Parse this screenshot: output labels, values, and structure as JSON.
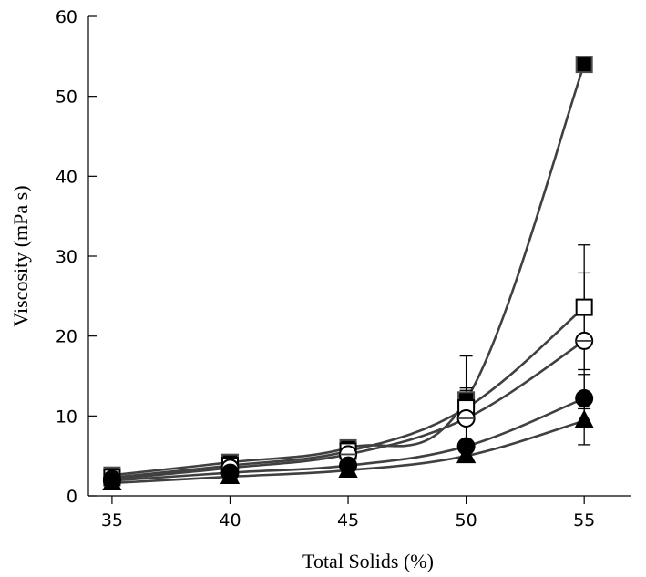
{
  "chart_data": {
    "type": "line",
    "xlabel": "Total Solids (%)",
    "ylabel": "Viscosity (mPa s)",
    "xlim": [
      34,
      57
    ],
    "ylim": [
      0,
      60
    ],
    "x_ticks": [
      35,
      40,
      45,
      50,
      55
    ],
    "y_ticks": [
      0,
      10,
      20,
      30,
      40,
      50,
      60
    ],
    "grid": false,
    "line_color": "#404040",
    "x": [
      35,
      40,
      45,
      50,
      55
    ],
    "series": [
      {
        "marker": "filled-square",
        "values": [
          2.6,
          4.2,
          6.0,
          12.0,
          54.0
        ],
        "error": [
          0.3,
          0.3,
          0.5,
          1.5,
          0
        ]
      },
      {
        "marker": "open-square",
        "values": [
          2.3,
          3.8,
          5.6,
          11.0,
          23.6
        ],
        "error": [
          0.3,
          0.4,
          0.5,
          6.5,
          7.8
        ]
      },
      {
        "marker": "open-circle",
        "values": [
          2.1,
          3.5,
          5.2,
          9.7,
          19.4
        ],
        "error": [
          0.3,
          0.3,
          0.5,
          3.5,
          8.5
        ]
      },
      {
        "marker": "filled-circle",
        "values": [
          1.9,
          2.9,
          3.8,
          6.2,
          12.2
        ],
        "error": [
          0.2,
          0.3,
          0.4,
          0.7,
          3.0
        ]
      },
      {
        "marker": "filled-triangle",
        "values": [
          1.6,
          2.4,
          3.2,
          5.0,
          9.4
        ],
        "error": [
          0.2,
          0.2,
          0.3,
          0.6,
          3.0
        ]
      }
    ]
  }
}
